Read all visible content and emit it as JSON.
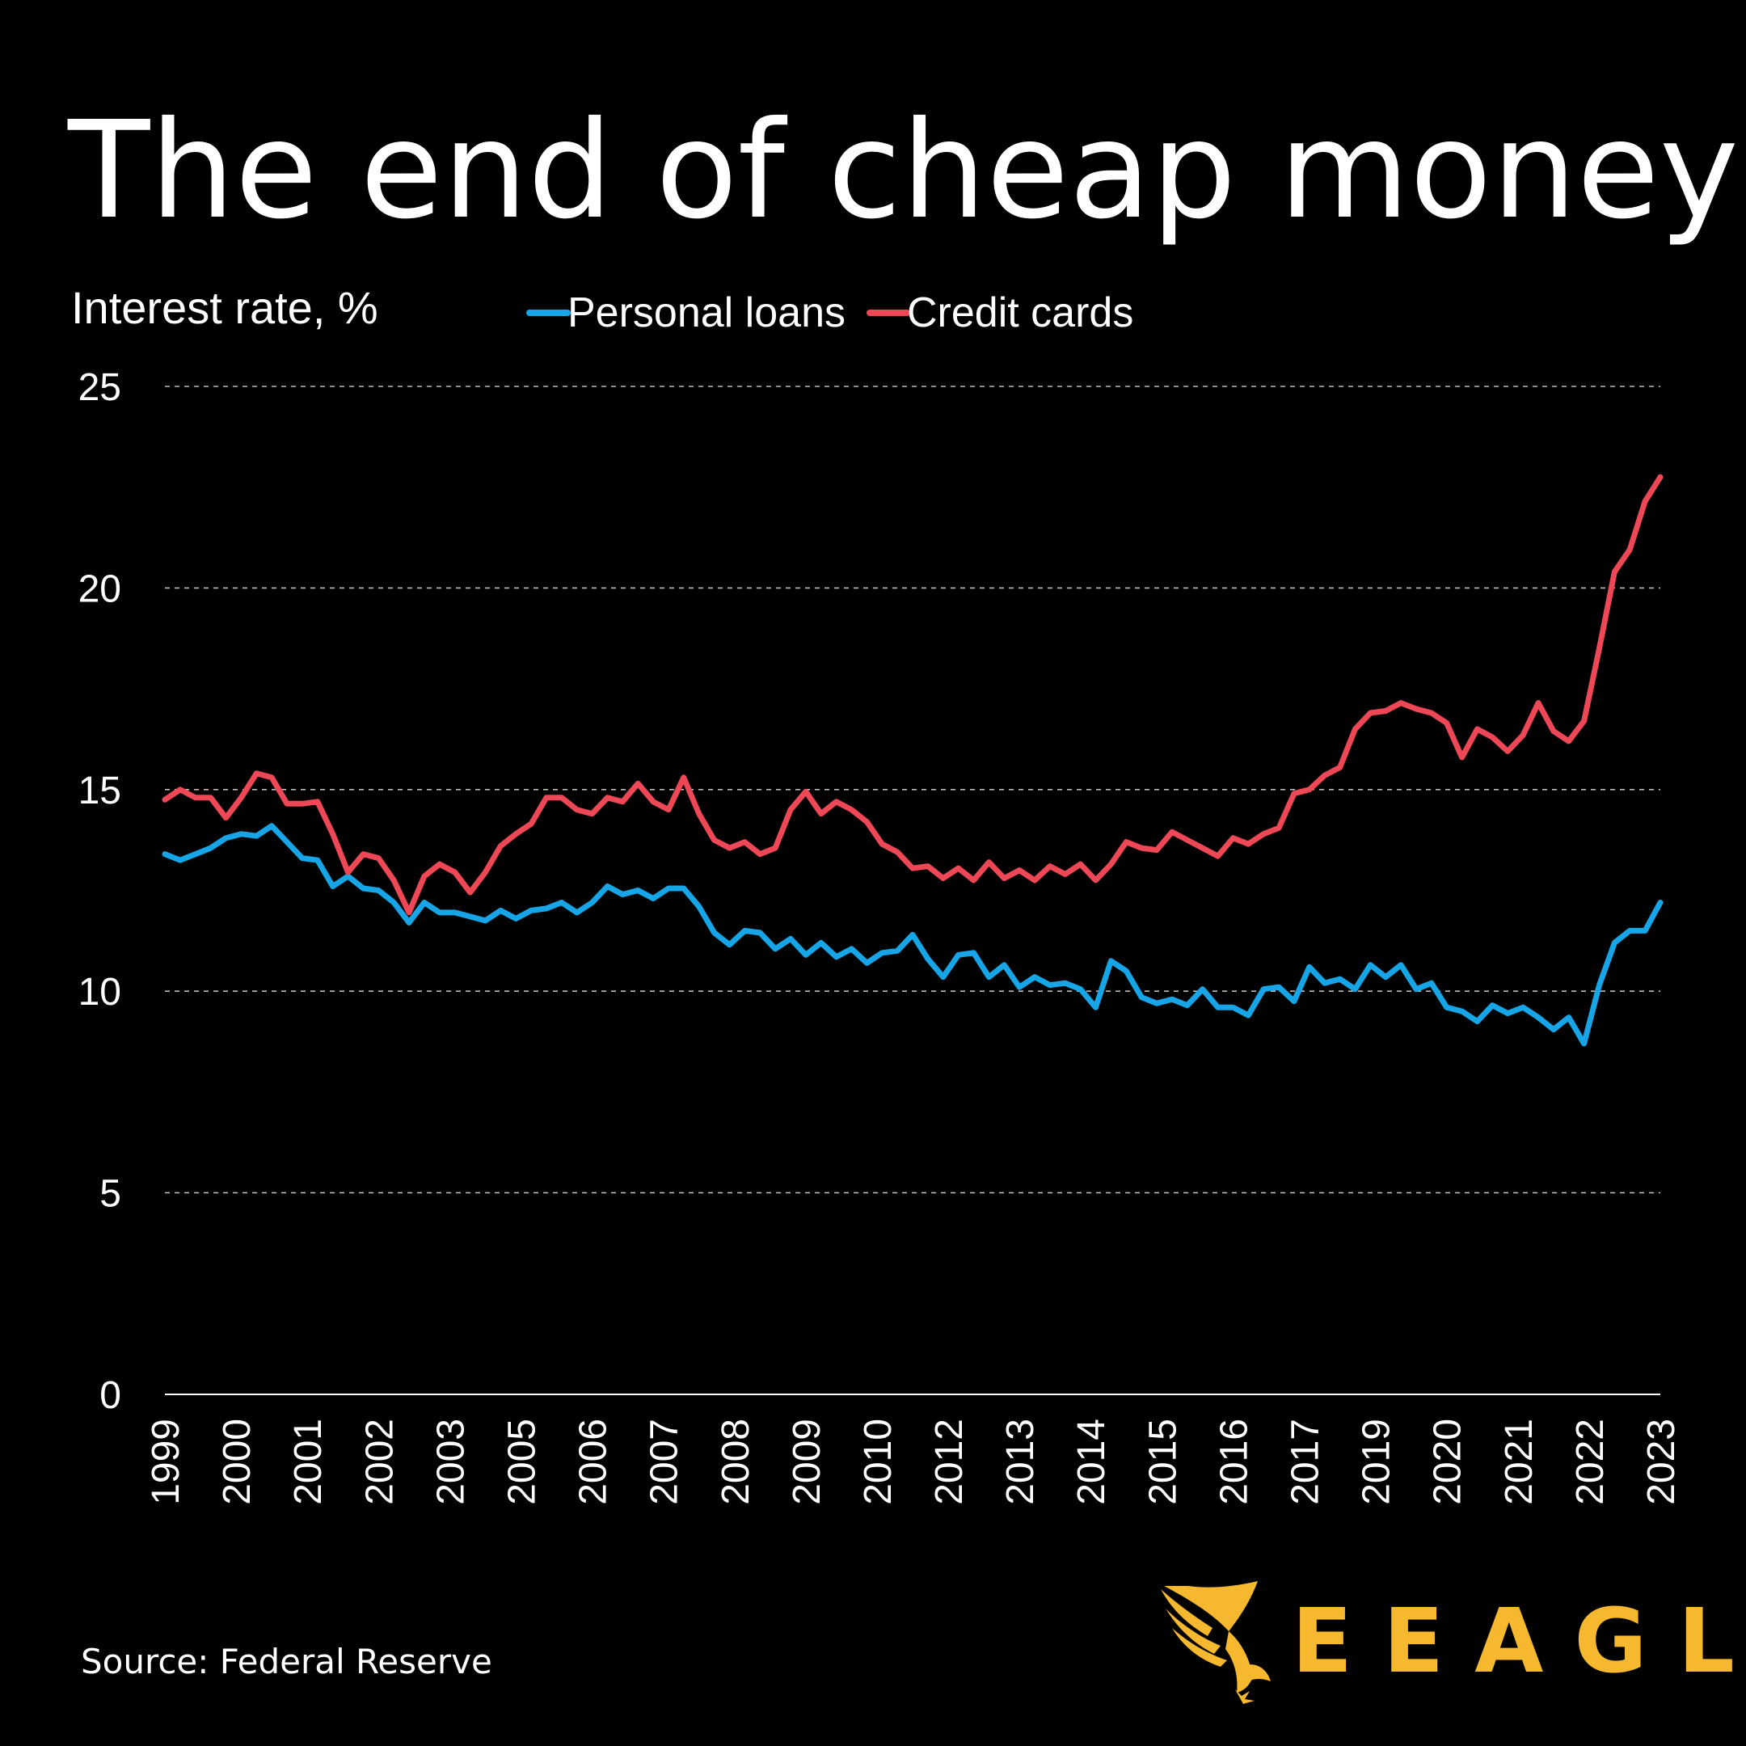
{
  "title": "The end of cheap money",
  "source": "Source: Federal Reserve",
  "brand": {
    "name": "EEAGLI",
    "color": "#f5b82e",
    "icon": "eagle-logo-icon"
  },
  "colors": {
    "background": "#000000",
    "personal_loans": "#16a5e6",
    "credit_cards": "#ee4756",
    "text": "#ffffff"
  },
  "chart_data": {
    "type": "line",
    "title": "The end of cheap money",
    "ylabel": "Interest rate, %",
    "xlabel": "",
    "ylim": [
      0,
      25
    ],
    "yticks": [
      0,
      5,
      10,
      15,
      20,
      25
    ],
    "grid": true,
    "legend_position": "top",
    "x_tick_labels": [
      "1999",
      "2000",
      "2001",
      "2002",
      "2003",
      "2005",
      "2006",
      "2007",
      "2008",
      "2009",
      "2010",
      "2012",
      "2013",
      "2014",
      "2015",
      "2016",
      "2017",
      "2019",
      "2020",
      "2021",
      "2022",
      "2023"
    ],
    "series": [
      {
        "name": "Personal loans",
        "color": "#16a5e6",
        "values": [
          13.4,
          13.25,
          13.4,
          13.55,
          13.8,
          13.9,
          13.85,
          14.1,
          13.7,
          13.3,
          13.25,
          12.6,
          12.85,
          12.55,
          12.5,
          12.2,
          11.7,
          12.2,
          11.95,
          11.95,
          11.85,
          11.75,
          12.0,
          11.8,
          12.0,
          12.05,
          12.2,
          11.95,
          12.2,
          12.6,
          12.4,
          12.5,
          12.3,
          12.55,
          12.55,
          12.1,
          11.45,
          11.15,
          11.5,
          11.45,
          11.05,
          11.3,
          10.9,
          11.2,
          10.85,
          11.05,
          10.7,
          10.95,
          11.0,
          11.4,
          10.8,
          10.35,
          10.9,
          10.95,
          10.35,
          10.65,
          10.1,
          10.35,
          10.15,
          10.2,
          10.05,
          9.6,
          10.75,
          10.5,
          9.85,
          9.7,
          9.8,
          9.65,
          10.05,
          9.6,
          9.6,
          9.4,
          10.05,
          10.1,
          9.75,
          10.6,
          10.2,
          10.3,
          10.05,
          10.65,
          10.35,
          10.65,
          10.05,
          10.2,
          9.6,
          9.5,
          9.25,
          9.65,
          9.45,
          9.6,
          9.35,
          9.05,
          9.35,
          8.7,
          10.15,
          11.2,
          11.5,
          11.5,
          12.2
        ]
      },
      {
        "name": "Credit cards",
        "color": "#ee4756",
        "values": [
          14.75,
          15.0,
          14.8,
          14.8,
          14.3,
          14.8,
          15.4,
          15.3,
          14.65,
          14.65,
          14.7,
          13.9,
          12.95,
          13.4,
          13.3,
          12.75,
          11.95,
          12.85,
          13.15,
          12.95,
          12.45,
          12.95,
          13.6,
          13.9,
          14.15,
          14.8,
          14.8,
          14.5,
          14.4,
          14.8,
          14.7,
          15.15,
          14.7,
          14.5,
          15.3,
          14.4,
          13.75,
          13.55,
          13.7,
          13.4,
          13.55,
          14.5,
          14.95,
          14.4,
          14.7,
          14.5,
          14.2,
          13.65,
          13.45,
          13.05,
          13.1,
          12.8,
          13.05,
          12.75,
          13.2,
          12.8,
          13.0,
          12.75,
          13.1,
          12.9,
          13.15,
          12.75,
          13.15,
          13.7,
          13.55,
          13.5,
          13.95,
          13.75,
          13.55,
          13.35,
          13.8,
          13.65,
          13.9,
          14.05,
          14.9,
          15.0,
          15.35,
          15.55,
          16.5,
          16.9,
          16.95,
          17.15,
          17.0,
          16.9,
          16.65,
          15.8,
          16.5,
          16.3,
          15.95,
          16.35,
          17.15,
          16.45,
          16.2,
          16.7,
          18.5,
          20.4,
          20.95,
          22.15,
          22.75
        ]
      }
    ]
  }
}
